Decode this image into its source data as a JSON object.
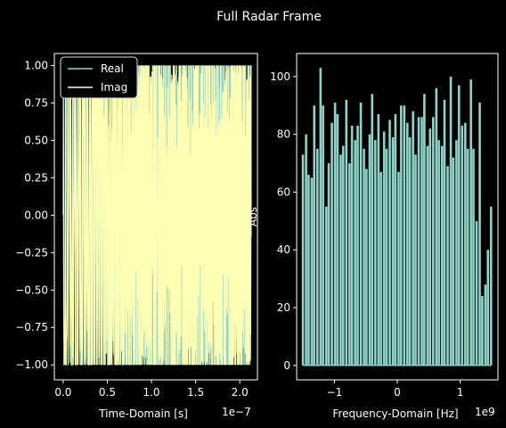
{
  "chart_data": [
    {
      "type": "line",
      "title": "",
      "xlabel": "Time-Domain [s]",
      "ylabel": "",
      "x_offset_label": "1e−7",
      "xlim": [
        -1e-08,
        2.2e-07
      ],
      "ylim": [
        -1.1,
        1.08
      ],
      "xticks": [
        0,
        0.5,
        1.0,
        1.5,
        2.0
      ],
      "xtick_labels": [
        "0.0",
        "0.5",
        "1.0",
        "1.5",
        "2.0"
      ],
      "yticks": [
        1.0,
        0.75,
        0.5,
        0.25,
        0.0,
        -0.25,
        -0.5,
        -0.75,
        -1.0
      ],
      "ytick_labels": [
        "1.00",
        "0.75",
        "0.50",
        "0.25",
        "0.00",
        "−0.25",
        "−0.50",
        "−0.75",
        "−1.00"
      ],
      "legend": {
        "placement": "top-left",
        "entries": [
          "Real",
          "Imag"
        ]
      },
      "series": [
        {
          "name": "Real",
          "color": "#8dd3c7",
          "x_range": [
            0,
            2.13e-07
          ],
          "y_range": [
            -1,
            1
          ],
          "pattern": "dense oscillating cosine"
        },
        {
          "name": "Imag",
          "color": "#ffffb3",
          "x_range": [
            0,
            2.13e-07
          ],
          "y_range": [
            -1,
            1
          ],
          "pattern": "dense oscillating sine"
        }
      ]
    },
    {
      "type": "bar",
      "title": "",
      "xlabel": "Frequency-Domain [Hz]",
      "ylabel": "Abs",
      "x_offset_label": "1e9",
      "xlim": [
        -1.6,
        1.6
      ],
      "ylim": [
        -5,
        108
      ],
      "xticks": [
        -1,
        0,
        1
      ],
      "xtick_labels": [
        "−1",
        "0",
        "1"
      ],
      "yticks": [
        0,
        20,
        40,
        60,
        80,
        100
      ],
      "ytick_labels": [
        "0",
        "20",
        "40",
        "60",
        "80",
        "100"
      ],
      "bar_color": "#8dd3c7",
      "x": [
        -1.5,
        -1.45,
        -1.41,
        -1.36,
        -1.32,
        -1.27,
        -1.22,
        -1.18,
        -1.13,
        -1.09,
        -1.04,
        -0.99,
        -0.95,
        -0.9,
        -0.86,
        -0.81,
        -0.76,
        -0.72,
        -0.67,
        -0.63,
        -0.58,
        -0.53,
        -0.49,
        -0.44,
        -0.4,
        -0.35,
        -0.3,
        -0.26,
        -0.21,
        -0.17,
        -0.12,
        -0.07,
        -0.03,
        0.02,
        0.06,
        0.11,
        0.16,
        0.2,
        0.25,
        0.29,
        0.34,
        0.39,
        0.43,
        0.48,
        0.52,
        0.57,
        0.62,
        0.66,
        0.71,
        0.75,
        0.8,
        0.85,
        0.89,
        0.94,
        0.98,
        1.03,
        1.08,
        1.12,
        1.17,
        1.21,
        1.26,
        1.31,
        1.35,
        1.4,
        1.44,
        1.49
      ],
      "values": [
        73,
        80,
        66,
        65,
        90,
        75,
        103,
        90,
        55,
        70,
        84,
        91,
        87,
        73,
        76,
        92,
        70,
        83,
        78,
        83,
        91,
        75,
        68,
        80,
        94,
        78,
        87,
        67,
        81,
        75,
        85,
        79,
        87,
        67,
        90,
        90,
        84,
        79,
        88,
        73,
        86,
        86,
        94,
        76,
        82,
        86,
        96,
        78,
        76,
        92,
        69,
        100,
        72,
        78,
        97,
        83,
        84,
        75,
        99,
        75,
        50,
        91,
        24,
        28,
        40,
        55
      ]
    }
  ],
  "figure_title": "Full Radar Frame"
}
